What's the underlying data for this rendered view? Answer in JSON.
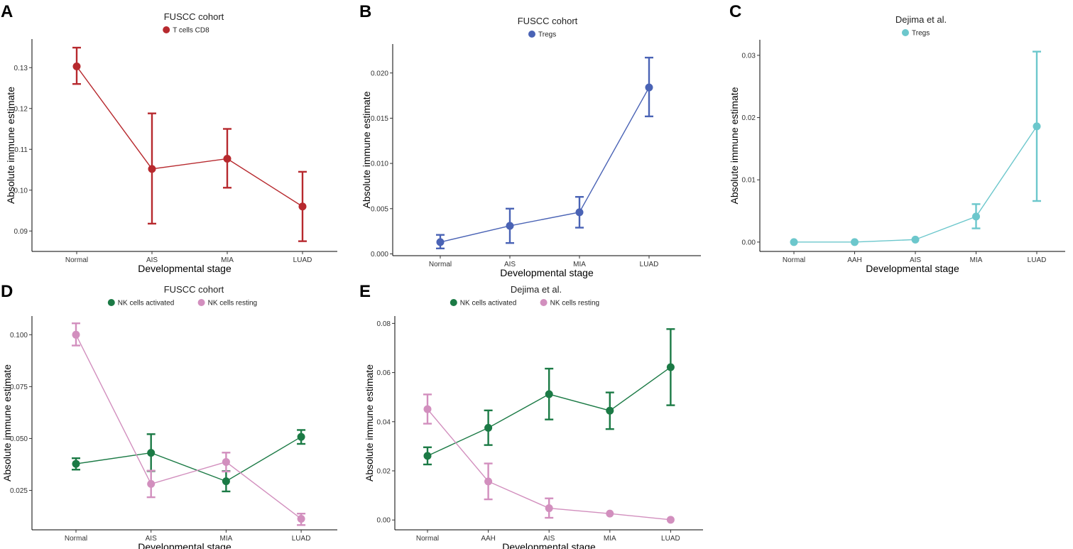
{
  "chart_data": [
    {
      "panel": "A",
      "type": "line",
      "title": "FUSCC cohort",
      "xlabel": "Developmental stage",
      "ylabel": "Absolute immune estimate",
      "categories": [
        "Normal",
        "AIS",
        "MIA",
        "LUAD"
      ],
      "ylim": [
        0.085,
        0.137
      ],
      "yticks": [
        0.09,
        0.1,
        0.11,
        0.12,
        0.13
      ],
      "ytick_labels": [
        "0.09",
        "0.10",
        "0.11",
        "0.12",
        "0.13"
      ],
      "grid": false,
      "legend_position": "top",
      "series": [
        {
          "name": "T cells CD8",
          "color": "#B7292E",
          "values": [
            0.1303,
            0.1052,
            0.1077,
            0.096
          ],
          "lower": [
            0.126,
            0.0918,
            0.1006,
            0.0875
          ],
          "upper": [
            0.1349,
            0.1188,
            0.115,
            0.1045
          ]
        }
      ]
    },
    {
      "panel": "B",
      "type": "line",
      "title": "FUSCC cohort",
      "xlabel": "Developmental stage",
      "ylabel": "Absolute immune estimate",
      "categories": [
        "Normal",
        "AIS",
        "MIA",
        "LUAD"
      ],
      "ylim": [
        -0.0002,
        0.0232
      ],
      "yticks": [
        0.0,
        0.005,
        0.01,
        0.015,
        0.02
      ],
      "ytick_labels": [
        "0.000",
        "0.005",
        "0.010",
        "0.015",
        "0.020"
      ],
      "grid": false,
      "legend_position": "top",
      "series": [
        {
          "name": "Tregs",
          "color": "#4A63B5",
          "values": [
            0.0013,
            0.0031,
            0.0046,
            0.0184
          ],
          "lower": [
            0.0006,
            0.0012,
            0.0029,
            0.0152
          ],
          "upper": [
            0.0021,
            0.005,
            0.0063,
            0.0217
          ]
        }
      ]
    },
    {
      "panel": "C",
      "type": "line",
      "title": "Dejima et al.",
      "xlabel": "Developmental stage",
      "ylabel": "Absolute immune estimate",
      "categories": [
        "Normal",
        "AAH",
        "AIS",
        "MIA",
        "LUAD"
      ],
      "ylim": [
        -0.0015,
        0.0325
      ],
      "yticks": [
        0.0,
        0.01,
        0.02,
        0.03
      ],
      "ytick_labels": [
        "0.00",
        "0.01",
        "0.02",
        "0.03"
      ],
      "grid": false,
      "legend_position": "top",
      "series": [
        {
          "name": "Tregs",
          "color": "#6CC7CC",
          "values": [
            0.0,
            0.0,
            0.0004,
            0.0041,
            0.0186
          ],
          "lower": [
            null,
            null,
            null,
            0.0022,
            0.0066
          ],
          "upper": [
            null,
            null,
            null,
            0.0061,
            0.0306
          ]
        }
      ]
    },
    {
      "panel": "D",
      "type": "line",
      "title": "FUSCC cohort",
      "xlabel": "Developmental stage",
      "ylabel": "Absolute immune estimate",
      "categories": [
        "Normal",
        "AIS",
        "MIA",
        "LUAD"
      ],
      "ylim": [
        0.006,
        0.109
      ],
      "yticks": [
        0.025,
        0.05,
        0.075,
        0.1
      ],
      "ytick_labels": [
        "0.025",
        "0.050",
        "0.075",
        "0.100"
      ],
      "grid": false,
      "legend_position": "top",
      "series": [
        {
          "name": "NK cells activated",
          "color": "#1B7A45",
          "values": [
            0.0378,
            0.0431,
            0.0294,
            0.0508
          ],
          "lower": [
            0.035,
            0.0343,
            0.0245,
            0.0474
          ],
          "upper": [
            0.0405,
            0.0521,
            0.0343,
            0.0541
          ]
        },
        {
          "name": "NK cells resting",
          "color": "#D28FBE",
          "values": [
            0.1,
            0.0281,
            0.0387,
            0.0113
          ],
          "lower": [
            0.0948,
            0.0217,
            0.0341,
            0.0083
          ],
          "upper": [
            0.1055,
            0.0345,
            0.0432,
            0.0138
          ]
        }
      ]
    },
    {
      "panel": "E",
      "type": "line",
      "title": "Dejima et al.",
      "xlabel": "Developmental stage",
      "ylabel": "Absolute immune estimate",
      "categories": [
        "Normal",
        "AAH",
        "AIS",
        "MIA",
        "LUAD"
      ],
      "ylim": [
        -0.004,
        0.083
      ],
      "yticks": [
        0.0,
        0.02,
        0.04,
        0.06,
        0.08
      ],
      "ytick_labels": [
        "0.00",
        "0.02",
        "0.04",
        "0.06",
        "0.08"
      ],
      "grid": false,
      "legend_position": "top",
      "series": [
        {
          "name": "NK cells activated",
          "color": "#1B7A45",
          "values": [
            0.0261,
            0.0375,
            0.0512,
            0.0445,
            0.0622
          ],
          "lower": [
            0.0226,
            0.0305,
            0.0409,
            0.037,
            0.0467
          ],
          "upper": [
            0.0296,
            0.0446,
            0.0616,
            0.0519,
            0.0777
          ]
        },
        {
          "name": "NK cells resting",
          "color": "#D28FBE",
          "values": [
            0.0451,
            0.0157,
            0.0048,
            0.0026,
            0.0001
          ],
          "lower": [
            0.0392,
            0.0084,
            0.0009,
            null,
            null
          ],
          "upper": [
            0.0511,
            0.023,
            0.0088,
            null,
            null
          ]
        }
      ]
    }
  ]
}
